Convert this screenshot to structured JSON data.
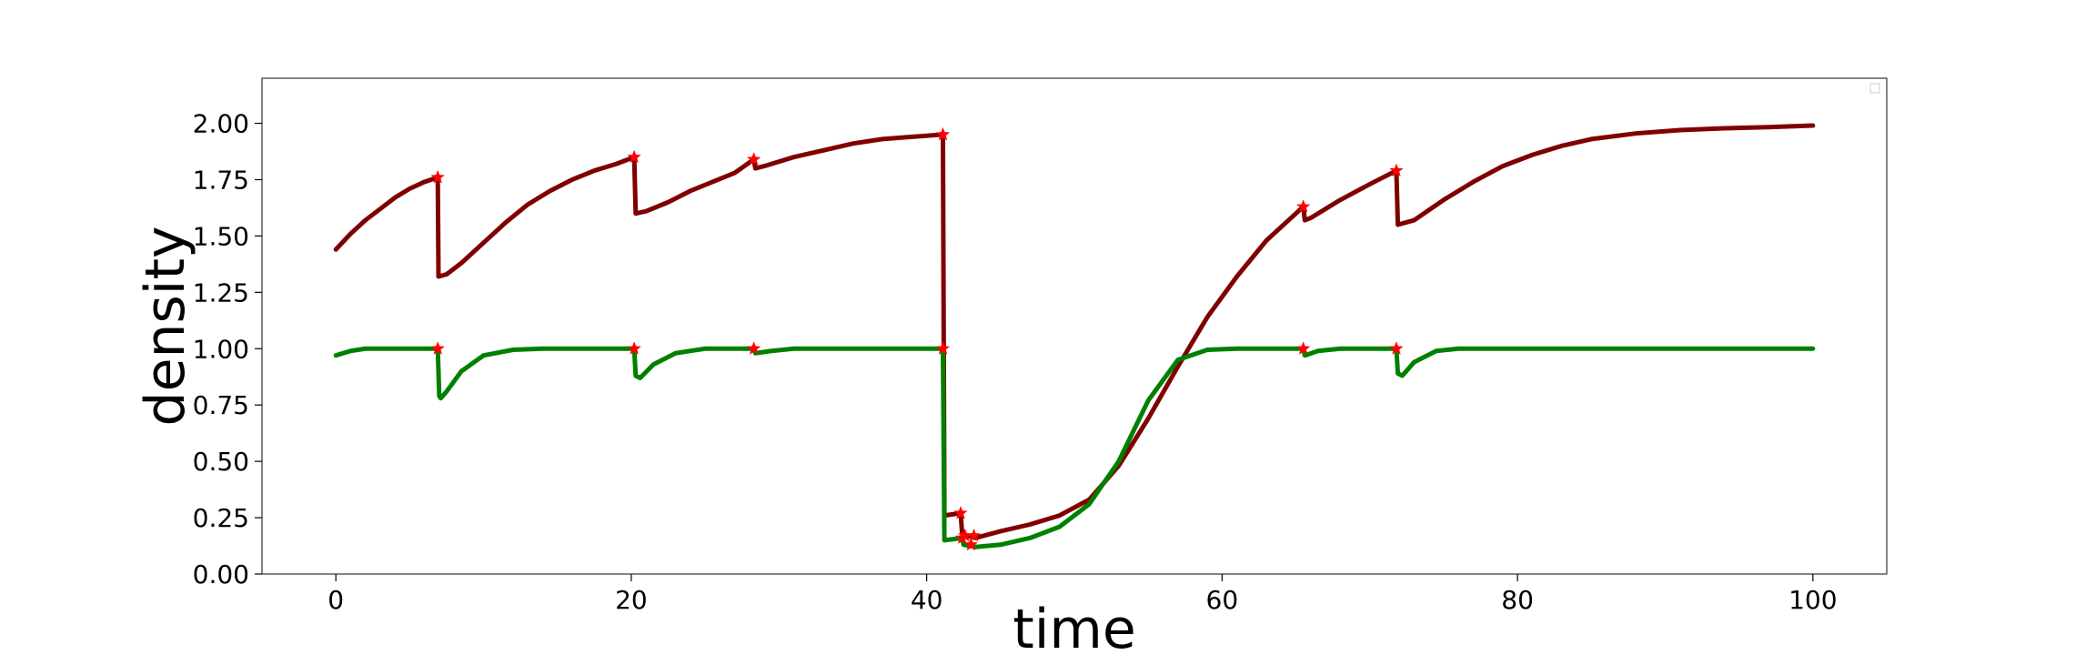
{
  "chart_data": {
    "type": "line",
    "title": "",
    "xlabel": "time",
    "ylabel": "density",
    "xlim": [
      -5,
      105
    ],
    "ylim": [
      0,
      2.2
    ],
    "xticks": [
      0,
      20,
      40,
      60,
      80,
      100
    ],
    "yticks": [
      0.0,
      0.25,
      0.5,
      0.75,
      1.0,
      1.25,
      1.5,
      1.75,
      2.0
    ],
    "grid": false,
    "legend": "top-right",
    "series": [
      {
        "color": "#800000",
        "points": [
          [
            0,
            1.44
          ],
          [
            1,
            1.51
          ],
          [
            2,
            1.57
          ],
          [
            3,
            1.62
          ],
          [
            4,
            1.67
          ],
          [
            5,
            1.71
          ],
          [
            6,
            1.74
          ],
          [
            6.9,
            1.76
          ],
          [
            6.95,
            1.32
          ],
          [
            7.5,
            1.33
          ],
          [
            8.5,
            1.38
          ],
          [
            10,
            1.47
          ],
          [
            11.5,
            1.56
          ],
          [
            13,
            1.64
          ],
          [
            14.5,
            1.7
          ],
          [
            16,
            1.75
          ],
          [
            17.5,
            1.79
          ],
          [
            19,
            1.82
          ],
          [
            20.2,
            1.85
          ],
          [
            20.3,
            1.6
          ],
          [
            21,
            1.61
          ],
          [
            22.5,
            1.65
          ],
          [
            24,
            1.7
          ],
          [
            25.5,
            1.74
          ],
          [
            27,
            1.78
          ],
          [
            28.3,
            1.84
          ],
          [
            28.4,
            1.8
          ],
          [
            29,
            1.81
          ],
          [
            31,
            1.85
          ],
          [
            33,
            1.88
          ],
          [
            35,
            1.91
          ],
          [
            37,
            1.93
          ],
          [
            39,
            1.94
          ],
          [
            41.1,
            1.95
          ],
          [
            41.2,
            0.26
          ],
          [
            42.3,
            0.27
          ],
          [
            42.4,
            0.18
          ],
          [
            42.7,
            0.17
          ],
          [
            43.3,
            0.16
          ],
          [
            45,
            0.19
          ],
          [
            47,
            0.22
          ],
          [
            49,
            0.26
          ],
          [
            51,
            0.33
          ],
          [
            53,
            0.48
          ],
          [
            55,
            0.69
          ],
          [
            57,
            0.92
          ],
          [
            59,
            1.14
          ],
          [
            61,
            1.32
          ],
          [
            63,
            1.48
          ],
          [
            64.5,
            1.57
          ],
          [
            65.5,
            1.63
          ],
          [
            65.6,
            1.57
          ],
          [
            66,
            1.58
          ],
          [
            68,
            1.66
          ],
          [
            70,
            1.73
          ],
          [
            71.8,
            1.79
          ],
          [
            71.9,
            1.55
          ],
          [
            73,
            1.57
          ],
          [
            75,
            1.66
          ],
          [
            77,
            1.74
          ],
          [
            79,
            1.81
          ],
          [
            81,
            1.86
          ],
          [
            83,
            1.9
          ],
          [
            85,
            1.93
          ],
          [
            88,
            1.955
          ],
          [
            91,
            1.97
          ],
          [
            94,
            1.978
          ],
          [
            97,
            1.983
          ],
          [
            100,
            1.99
          ]
        ]
      },
      {
        "color": "#008000",
        "points": [
          [
            0,
            0.97
          ],
          [
            1,
            0.99
          ],
          [
            2,
            1.0
          ],
          [
            4,
            1.0
          ],
          [
            6.9,
            1.0
          ],
          [
            7.0,
            0.79
          ],
          [
            7.1,
            0.78
          ],
          [
            7.5,
            0.81
          ],
          [
            8.5,
            0.9
          ],
          [
            10,
            0.97
          ],
          [
            12,
            0.995
          ],
          [
            14,
            1.0
          ],
          [
            20.2,
            1.0
          ],
          [
            20.3,
            0.88
          ],
          [
            20.6,
            0.87
          ],
          [
            21.5,
            0.93
          ],
          [
            23,
            0.98
          ],
          [
            25,
            1.0
          ],
          [
            28.3,
            1.0
          ],
          [
            28.4,
            0.98
          ],
          [
            29.5,
            0.99
          ],
          [
            31,
            1.0
          ],
          [
            41.1,
            1.0
          ],
          [
            41.2,
            0.15
          ],
          [
            42.4,
            0.16
          ],
          [
            42.5,
            0.13
          ],
          [
            43.3,
            0.12
          ],
          [
            45,
            0.13
          ],
          [
            47,
            0.16
          ],
          [
            49,
            0.21
          ],
          [
            51,
            0.31
          ],
          [
            53,
            0.5
          ],
          [
            55,
            0.77
          ],
          [
            57,
            0.95
          ],
          [
            59,
            0.995
          ],
          [
            61,
            1.0
          ],
          [
            65.5,
            1.0
          ],
          [
            65.6,
            0.97
          ],
          [
            66.5,
            0.99
          ],
          [
            68,
            1.0
          ],
          [
            71.8,
            1.0
          ],
          [
            71.9,
            0.89
          ],
          [
            72.2,
            0.88
          ],
          [
            73,
            0.94
          ],
          [
            74.5,
            0.99
          ],
          [
            76,
            1.0
          ],
          [
            100,
            1.0
          ]
        ]
      }
    ],
    "markers": {
      "color": "#ff0000",
      "shape": "star",
      "points": [
        [
          6.9,
          1.76
        ],
        [
          20.2,
          1.85
        ],
        [
          28.3,
          1.84
        ],
        [
          41.1,
          1.95
        ],
        [
          42.3,
          0.27
        ],
        [
          42.6,
          0.17
        ],
        [
          43.2,
          0.17
        ],
        [
          65.5,
          1.63
        ],
        [
          71.8,
          1.79
        ],
        [
          6.9,
          1.0
        ],
        [
          20.2,
          1.0
        ],
        [
          28.3,
          1.0
        ],
        [
          41.1,
          1.0
        ],
        [
          42.4,
          0.16
        ],
        [
          43.0,
          0.13
        ],
        [
          65.5,
          1.0
        ],
        [
          71.8,
          1.0
        ]
      ]
    }
  }
}
